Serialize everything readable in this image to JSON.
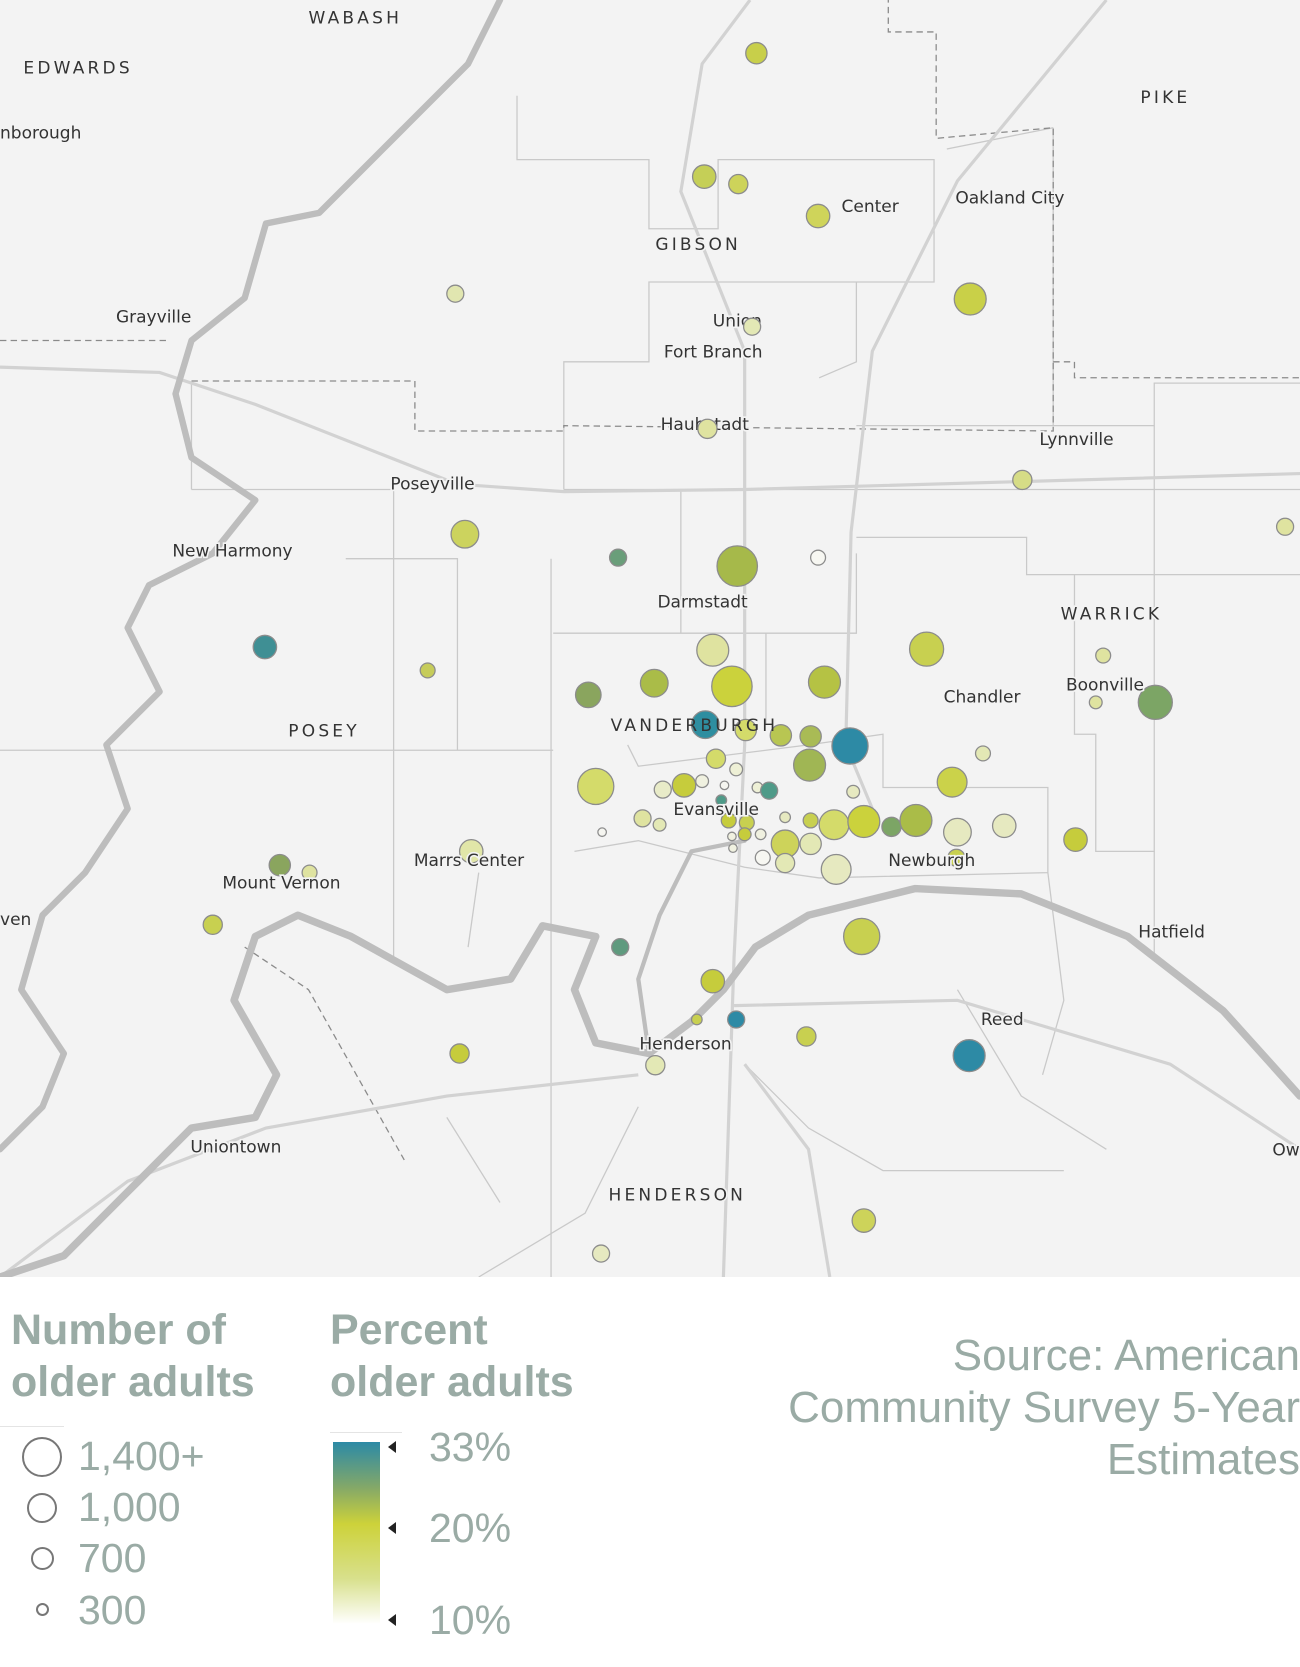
{
  "map": {
    "places": {
      "wabash": "WABASH",
      "edwards": "EDWARDS",
      "nborough": "nborough",
      "pike": "PIKE",
      "center": "Center",
      "oakland_city": "Oakland City",
      "gibson": "GIBSON",
      "grayville": "Grayville",
      "union": "Union",
      "fort_branch": "Fort Branch",
      "haubstadt": "Haubstadt",
      "lynnville": "Lynnville",
      "poseyville": "Poseyville",
      "new_harmony": "New Harmony",
      "darmstadt": "Darmstadt",
      "warrick": "WARRICK",
      "boonville": "Boonville",
      "chandler": "Chandler",
      "posey": "POSEY",
      "vanderburgh": "VANDERBURGH",
      "evansville": "Evansville",
      "marrs_center": "Marrs Center",
      "newburgh": "Newburgh",
      "mount_vernon": "Mount Vernon",
      "ven": "ven",
      "hatfield": "Hatfield",
      "reed": "Reed",
      "henderson_city": "Henderson",
      "uniontown": "Uniontown",
      "henderson_county": "HENDERSON",
      "ow": "Ow"
    },
    "colors": {
      "background": "#f3f3f3",
      "low": "#f5f5ee",
      "mid": "#cdd23a",
      "high": "#2c8aa6"
    }
  },
  "legend": {
    "size_title_1": "Number of",
    "size_title_2": "older adults",
    "size_items": [
      "1,400+",
      "1,000",
      "700",
      "300"
    ],
    "color_title_1": "Percent",
    "color_title_2": "older adults",
    "color_items": [
      "33%",
      "20%",
      "10%"
    ]
  },
  "source": {
    "line1": "Source: American",
    "line2": "Community Survey 5-Year",
    "line3": "Estimates"
  }
}
